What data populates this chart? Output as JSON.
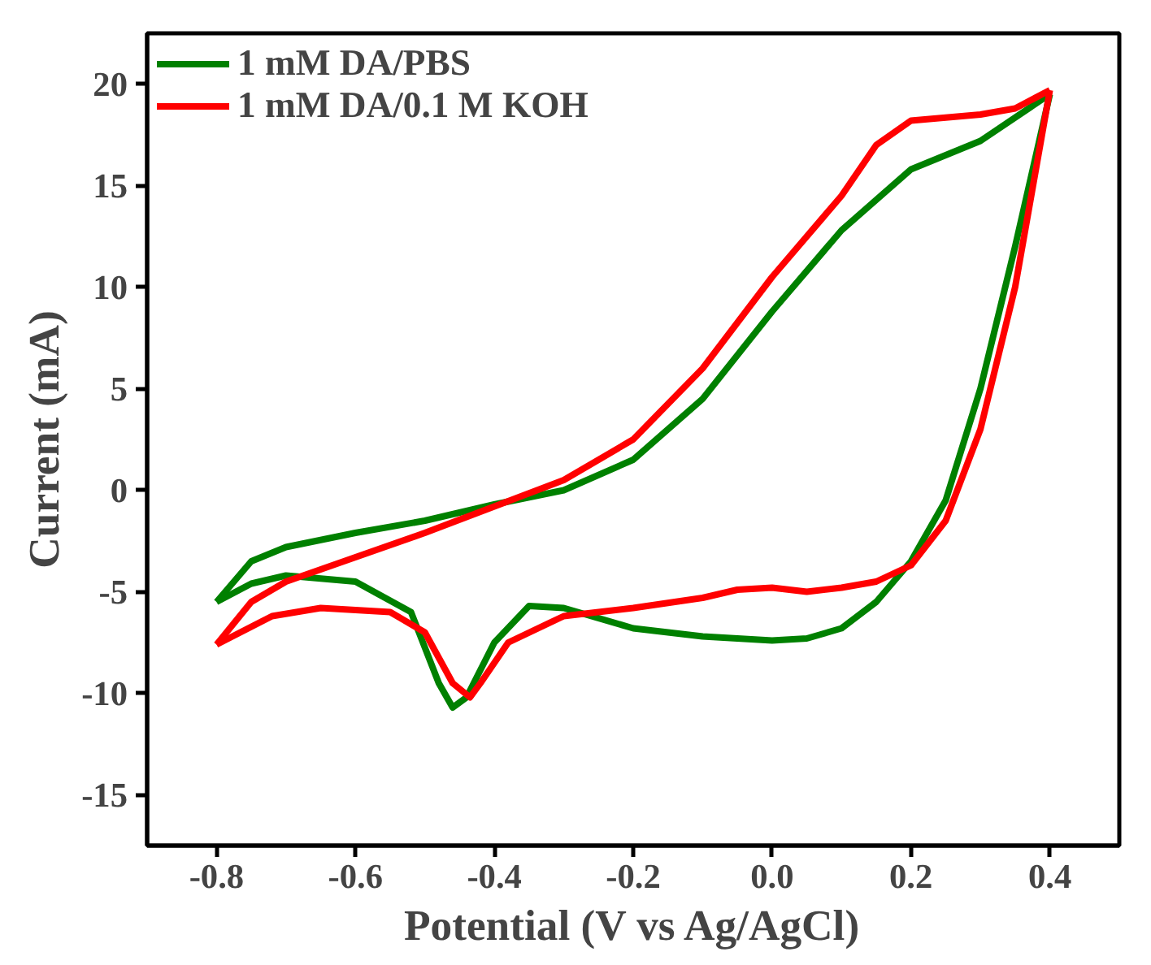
{
  "chart_data": {
    "type": "line",
    "xlabel": "Potential (V vs Ag/AgCl)",
    "ylabel": "Current (mA)",
    "xlim": [
      -0.9,
      0.5
    ],
    "ylim": [
      -17.5,
      22.5
    ],
    "xticks": [
      -0.8,
      -0.6,
      -0.4,
      -0.2,
      {
        "value": 0,
        "label": "0.0"
      },
      0.2,
      0.4
    ],
    "yticks": [
      -15,
      -10,
      -5,
      0,
      5,
      10,
      15,
      20
    ],
    "grid": false,
    "legend": "top left",
    "marker": "none",
    "line_style": "solid",
    "series": [
      {
        "name": "1 mM DA/PBS",
        "color": "#008000",
        "x": [
          -0.8,
          -0.75,
          -0.7,
          -0.6,
          -0.5,
          -0.4,
          -0.3,
          -0.2,
          -0.1,
          0.0,
          0.1,
          0.2,
          0.3,
          0.4
        ],
        "values": [
          -5.5,
          -3.5,
          -2.8,
          -2.1,
          -1.5,
          -0.7,
          0,
          1.5,
          4.5,
          8.8,
          12.8,
          15.8,
          17.2,
          19.5
        ]
      },
      {
        "color": "#008000",
        "x": [
          0.4,
          0.35,
          0.3,
          0.25,
          0.2,
          0.15,
          0.1,
          0.05,
          0.0,
          -0.1,
          -0.2,
          -0.3,
          -0.35,
          -0.4,
          -0.44,
          -0.46,
          -0.48,
          -0.52,
          -0.6,
          -0.7,
          -0.75,
          -0.8
        ],
        "values": [
          19.5,
          12,
          5,
          -0.5,
          -3.5,
          -5.5,
          -6.8,
          -7.3,
          -7.4,
          -7.2,
          -6.8,
          -5.8,
          -5.7,
          -7.5,
          -10.2,
          -10.7,
          -9.5,
          -6,
          -4.5,
          -4.2,
          -4.6,
          -5.5
        ]
      },
      {
        "name": "1 mM DA/0.1 M KOH",
        "color": "#ff0000",
        "x": [
          -0.8,
          -0.75,
          -0.7,
          -0.6,
          -0.5,
          -0.4,
          -0.3,
          -0.2,
          -0.1,
          0.0,
          0.1,
          0.15,
          0.2,
          0.3,
          0.35,
          0.4
        ],
        "values": [
          -7.6,
          -5.5,
          -4.5,
          -3.3,
          -2.1,
          -0.8,
          0.5,
          2.5,
          6,
          10.5,
          14.5,
          17,
          18.2,
          18.5,
          18.8,
          19.7
        ]
      },
      {
        "color": "#ff0000",
        "x": [
          0.4,
          0.35,
          0.3,
          0.25,
          0.2,
          0.15,
          0.1,
          0.05,
          0.0,
          -0.05,
          -0.1,
          -0.2,
          -0.3,
          -0.38,
          -0.42,
          -0.435,
          -0.46,
          -0.5,
          -0.55,
          -0.65,
          -0.72,
          -0.8
        ],
        "values": [
          19.7,
          10,
          3,
          -1.5,
          -3.7,
          -4.5,
          -4.8,
          -5,
          -4.8,
          -4.9,
          -5.3,
          -5.8,
          -6.2,
          -7.5,
          -9.5,
          -10.2,
          -9.5,
          -7,
          -6,
          -5.8,
          -6.2,
          -7.6
        ]
      }
    ]
  }
}
